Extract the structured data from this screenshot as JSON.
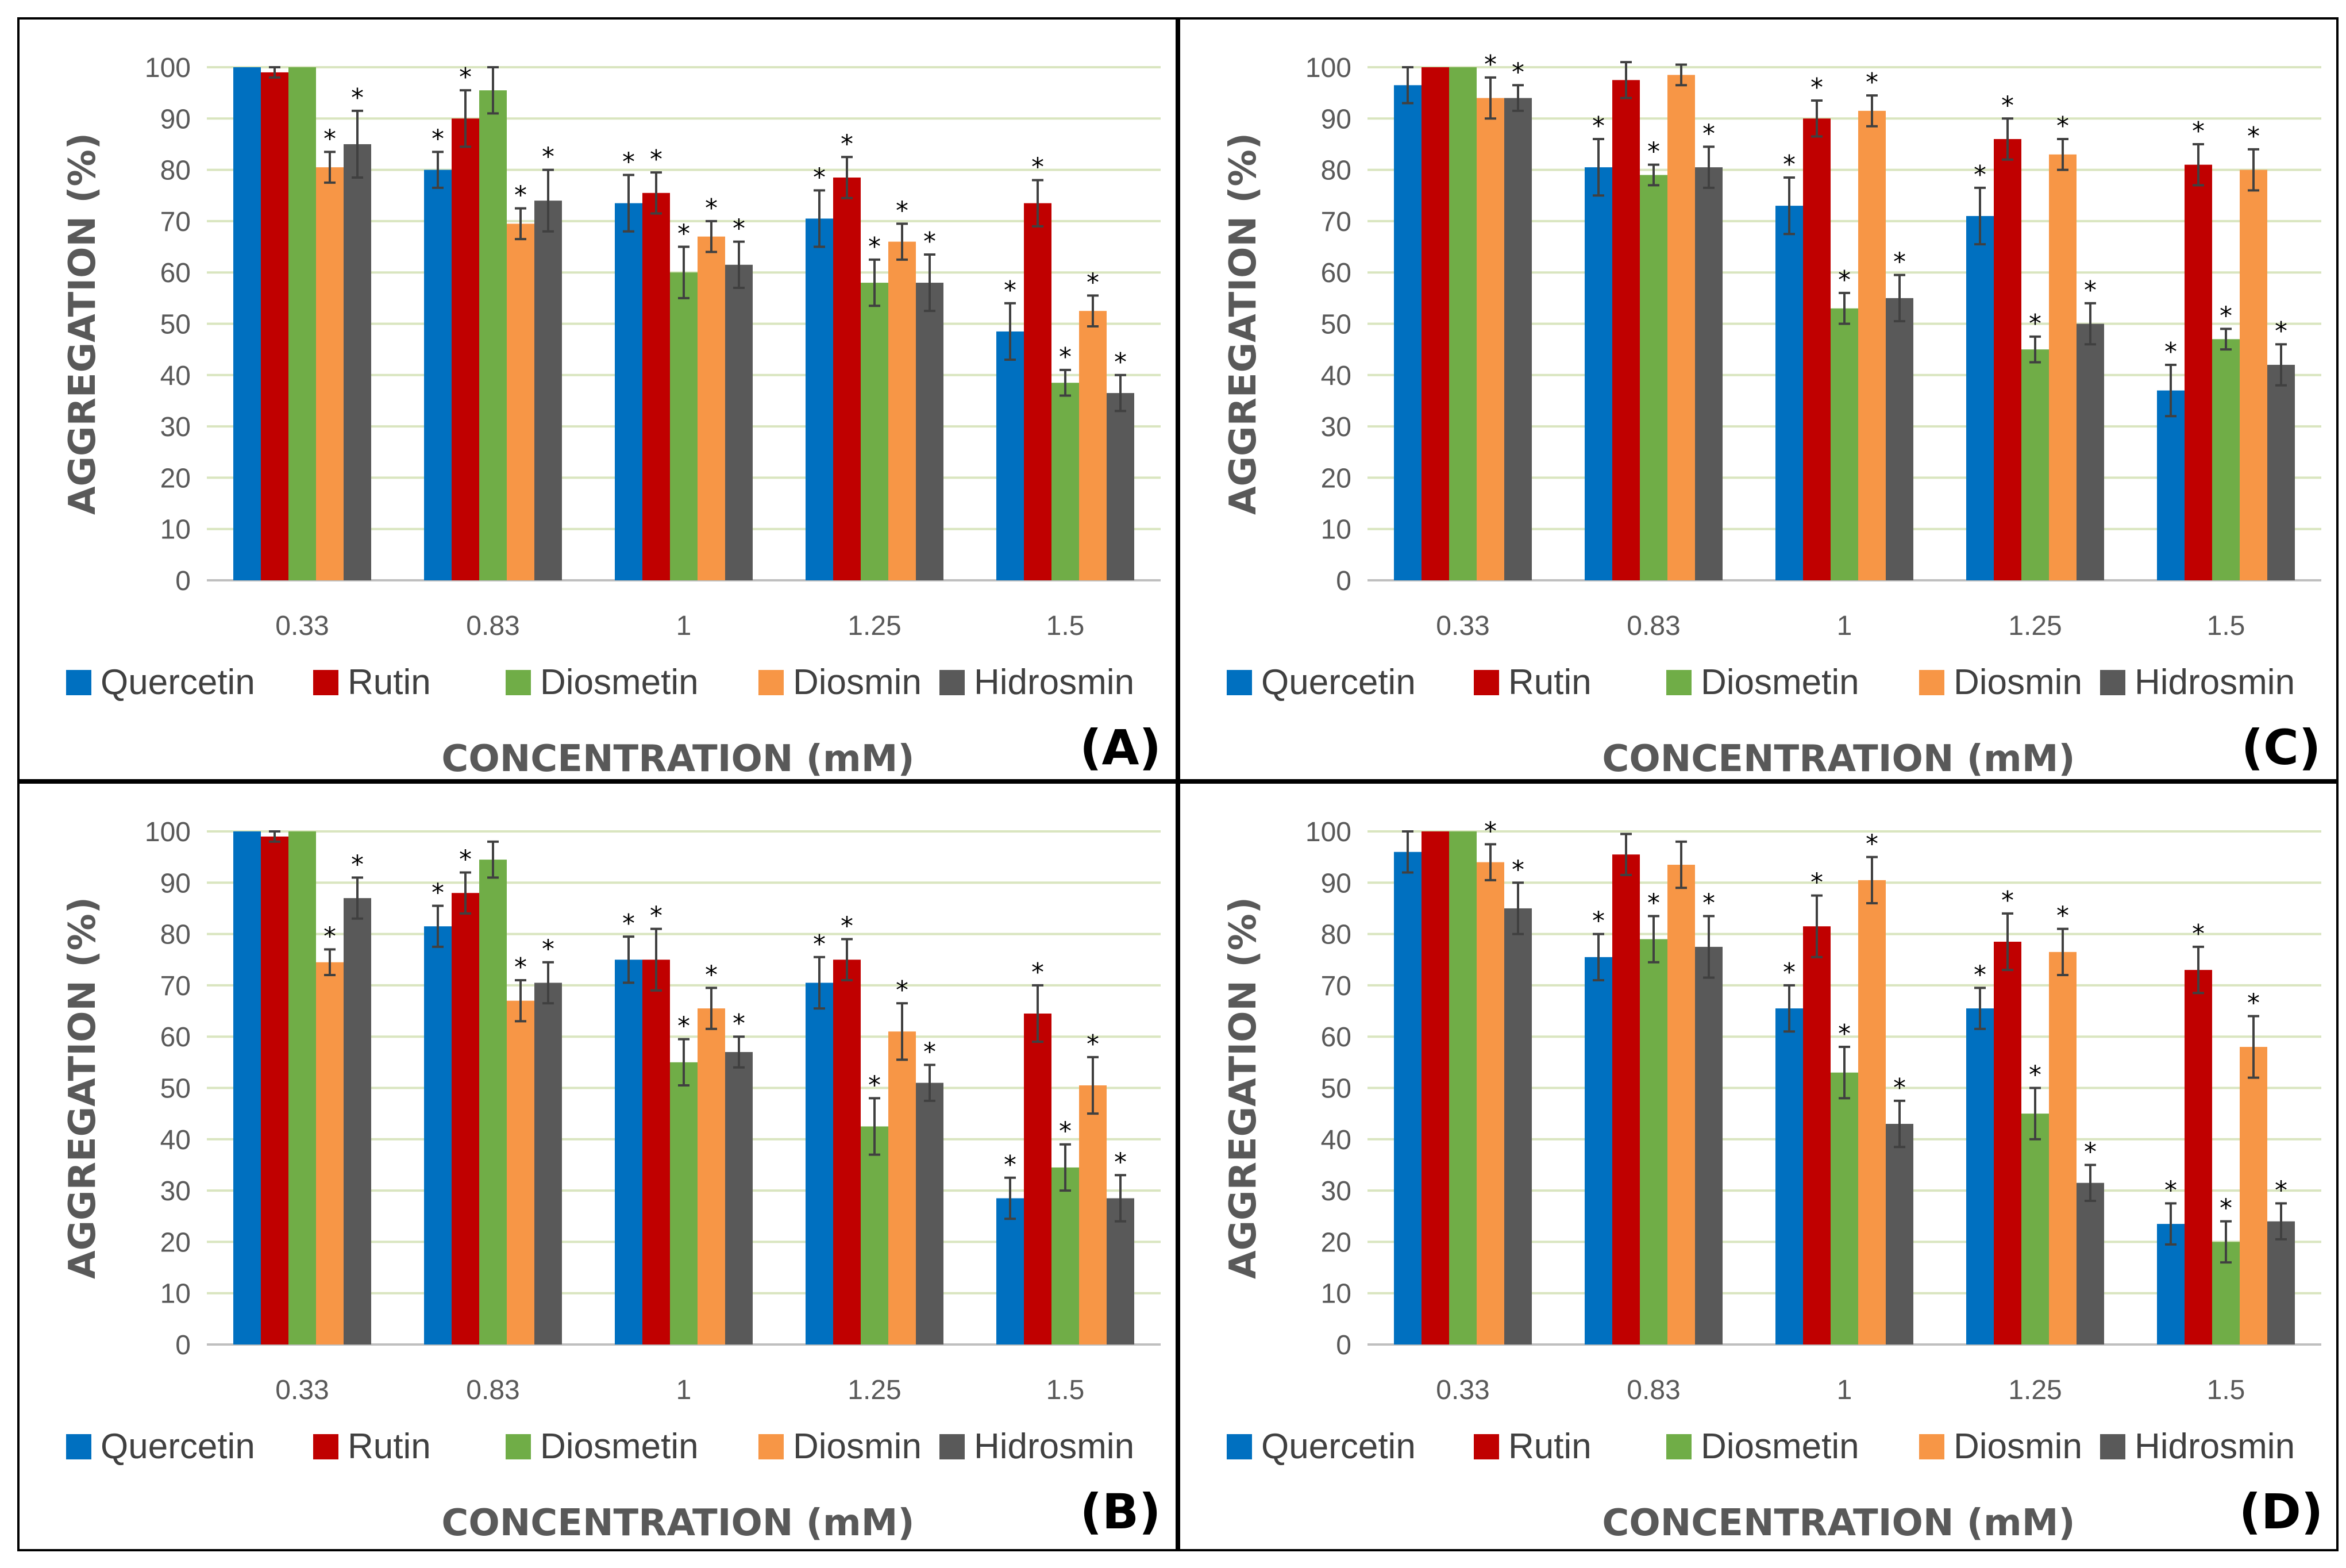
{
  "chart_data": [
    {
      "type": "bar",
      "panel_label": "(A)",
      "xlabel": "CONCENTRATION (mM)",
      "ylabel": "AGGREGATION (%)",
      "ylim": [
        0,
        100
      ],
      "yticks": [
        "0",
        "10",
        "20",
        "30",
        "40",
        "50",
        "60",
        "70",
        "80",
        "90",
        "100"
      ],
      "categories": [
        "0.33",
        "0.83",
        "1",
        "1.25",
        "1.5"
      ],
      "series": [
        {
          "name": "Quercetin",
          "values": [
            100,
            80,
            73.5,
            70.5,
            48.5
          ],
          "errors": [
            0,
            3.5,
            5.5,
            5.5,
            5.5
          ],
          "significant": [
            false,
            true,
            true,
            true,
            true
          ]
        },
        {
          "name": "Rutin",
          "values": [
            99,
            90,
            75.5,
            78.5,
            73.5
          ],
          "errors": [
            1,
            5.5,
            4,
            4,
            4.5
          ],
          "significant": [
            false,
            true,
            true,
            true,
            true
          ]
        },
        {
          "name": "Diosmetin",
          "values": [
            100,
            95.5,
            60,
            58,
            38.5
          ],
          "errors": [
            0,
            4.5,
            5,
            4.5,
            2.5
          ],
          "significant": [
            false,
            false,
            true,
            true,
            true
          ]
        },
        {
          "name": "Diosmin",
          "values": [
            80.5,
            69.5,
            67,
            66,
            52.5
          ],
          "errors": [
            3,
            3,
            3,
            3.5,
            3
          ],
          "significant": [
            true,
            true,
            true,
            true,
            true
          ]
        },
        {
          "name": "Hidrosmin",
          "values": [
            85,
            74,
            61.5,
            58,
            36.5
          ],
          "errors": [
            6.5,
            6,
            4.5,
            5.5,
            3.5
          ],
          "significant": [
            true,
            true,
            true,
            true,
            true
          ]
        }
      ]
    },
    {
      "type": "bar",
      "panel_label": "(C)",
      "xlabel": "CONCENTRATION (mM)",
      "ylabel": "AGGREGATION (%)",
      "ylim": [
        0,
        100
      ],
      "yticks": [
        "0",
        "10",
        "20",
        "30",
        "40",
        "50",
        "60",
        "70",
        "80",
        "90",
        "100"
      ],
      "categories": [
        "0.33",
        "0.83",
        "1",
        "1.25",
        "1.5"
      ],
      "series": [
        {
          "name": "Quercetin",
          "values": [
            96.5,
            80.5,
            73,
            71,
            37
          ],
          "errors": [
            3.5,
            5.5,
            5.5,
            5.5,
            5
          ],
          "significant": [
            false,
            true,
            true,
            true,
            true
          ]
        },
        {
          "name": "Rutin",
          "values": [
            100,
            97.5,
            90,
            86,
            81
          ],
          "errors": [
            0,
            3.5,
            3.5,
            4,
            4
          ],
          "significant": [
            false,
            false,
            true,
            true,
            true
          ]
        },
        {
          "name": "Diosmetin",
          "values": [
            100,
            79,
            53,
            45,
            47
          ],
          "errors": [
            0,
            2,
            3,
            2.5,
            2
          ],
          "significant": [
            false,
            true,
            true,
            true,
            true
          ]
        },
        {
          "name": "Diosmin",
          "values": [
            94,
            98.5,
            91.5,
            83,
            80
          ],
          "errors": [
            4,
            2,
            3,
            3,
            4
          ],
          "significant": [
            true,
            false,
            true,
            true,
            true
          ]
        },
        {
          "name": "Hidrosmin",
          "values": [
            94,
            80.5,
            55,
            50,
            42
          ],
          "errors": [
            2.5,
            4,
            4.5,
            4,
            4
          ],
          "significant": [
            true,
            true,
            true,
            true,
            true
          ]
        }
      ]
    },
    {
      "type": "bar",
      "panel_label": "(B)",
      "xlabel": "CONCENTRATION (mM)",
      "ylabel": "AGGREGATION (%)",
      "ylim": [
        0,
        100
      ],
      "yticks": [
        "0",
        "10",
        "20",
        "30",
        "40",
        "50",
        "60",
        "70",
        "80",
        "90",
        "100"
      ],
      "categories": [
        "0.33",
        "0.83",
        "1",
        "1.25",
        "1.5"
      ],
      "series": [
        {
          "name": "Quercetin",
          "values": [
            100,
            81.5,
            75,
            70.5,
            28.5
          ],
          "errors": [
            0,
            4,
            4.5,
            5,
            4
          ],
          "significant": [
            false,
            true,
            true,
            true,
            true
          ]
        },
        {
          "name": "Rutin",
          "values": [
            99,
            88,
            75,
            75,
            64.5
          ],
          "errors": [
            1,
            4,
            6,
            4,
            5.5
          ],
          "significant": [
            false,
            true,
            true,
            true,
            true
          ]
        },
        {
          "name": "Diosmetin",
          "values": [
            100,
            94.5,
            55,
            42.5,
            34.5
          ],
          "errors": [
            0,
            3.5,
            4.5,
            5.5,
            4.5
          ],
          "significant": [
            false,
            false,
            true,
            true,
            true
          ]
        },
        {
          "name": "Diosmin",
          "values": [
            74.5,
            67,
            65.5,
            61,
            50.5
          ],
          "errors": [
            2.5,
            4,
            4,
            5.5,
            5.5
          ],
          "significant": [
            true,
            true,
            true,
            true,
            true
          ]
        },
        {
          "name": "Hidrosmin",
          "values": [
            87,
            70.5,
            57,
            51,
            28.5
          ],
          "errors": [
            4,
            4,
            3,
            3.5,
            4.5
          ],
          "significant": [
            true,
            true,
            true,
            true,
            true
          ]
        }
      ]
    },
    {
      "type": "bar",
      "panel_label": "(D)",
      "xlabel": "CONCENTRATION (mM)",
      "ylabel": "AGGREGATION (%)",
      "ylim": [
        0,
        100
      ],
      "yticks": [
        "0",
        "10",
        "20",
        "30",
        "40",
        "50",
        "60",
        "70",
        "80",
        "90",
        "100"
      ],
      "categories": [
        "0.33",
        "0.83",
        "1",
        "1.25",
        "1.5"
      ],
      "series": [
        {
          "name": "Quercetin",
          "values": [
            96,
            75.5,
            65.5,
            65.5,
            23.5
          ],
          "errors": [
            4,
            4.5,
            4.5,
            4,
            4
          ],
          "significant": [
            false,
            true,
            true,
            true,
            true
          ]
        },
        {
          "name": "Rutin",
          "values": [
            100,
            95.5,
            81.5,
            78.5,
            73
          ],
          "errors": [
            0,
            4,
            6,
            5.5,
            4.5
          ],
          "significant": [
            false,
            false,
            true,
            true,
            true
          ]
        },
        {
          "name": "Diosmetin",
          "values": [
            100,
            79,
            53,
            45,
            20
          ],
          "errors": [
            0,
            4.5,
            5,
            5,
            4
          ],
          "significant": [
            false,
            true,
            true,
            true,
            true
          ]
        },
        {
          "name": "Diosmin",
          "values": [
            94,
            93.5,
            90.5,
            76.5,
            58
          ],
          "errors": [
            3.5,
            4.5,
            4.5,
            4.5,
            6
          ],
          "significant": [
            true,
            false,
            true,
            true,
            true
          ]
        },
        {
          "name": "Hidrosmin",
          "values": [
            85,
            77.5,
            43,
            31.5,
            24
          ],
          "errors": [
            5,
            6,
            4.5,
            3.5,
            3.5
          ],
          "significant": [
            true,
            true,
            true,
            true,
            true
          ]
        }
      ]
    }
  ],
  "colors": {
    "Quercetin": "#0070c0",
    "Rutin": "#c00000",
    "Diosmetin": "#70ad47",
    "Diosmin": "#f79646",
    "Hidrosmin": "#595959",
    "gridline": "#d9e5bf",
    "border": "#000000"
  },
  "significance_marker": "*"
}
